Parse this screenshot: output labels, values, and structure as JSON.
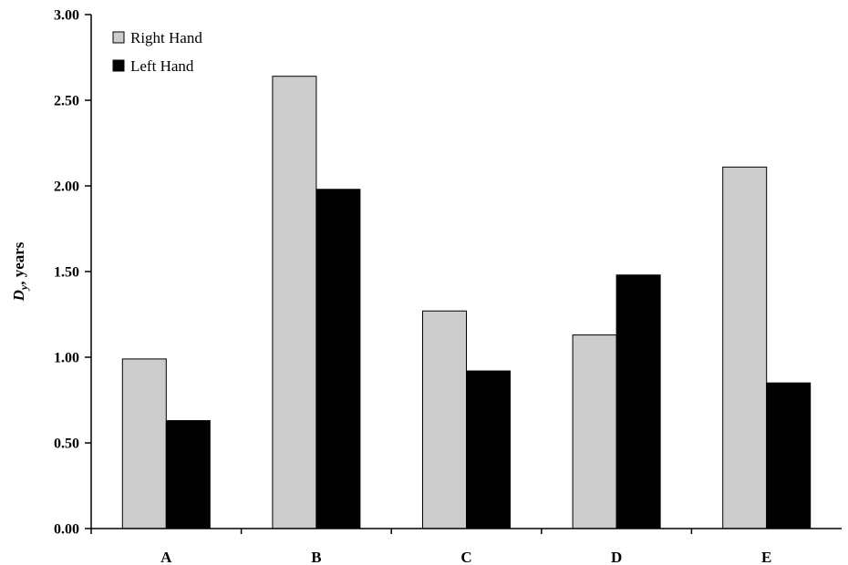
{
  "chart_data": {
    "type": "bar",
    "categories": [
      "A",
      "B",
      "C",
      "D",
      "E"
    ],
    "series": [
      {
        "name": "Right Hand",
        "color": "#cccccc",
        "values": [
          0.99,
          2.64,
          1.27,
          1.13,
          2.11
        ]
      },
      {
        "name": "Left Hand",
        "color": "#000000",
        "values": [
          0.63,
          1.98,
          0.92,
          1.48,
          0.85
        ]
      }
    ],
    "ylabel": {
      "italic": "D",
      "sub": "y",
      "rest": ", years"
    },
    "ylim": [
      0,
      3
    ],
    "yticks": [
      "0.00",
      "0.50",
      "1.00",
      "1.50",
      "2.00",
      "2.50",
      "3.00"
    ],
    "ytick_values": [
      0,
      0.5,
      1,
      1.5,
      2,
      2.5,
      3
    ],
    "grid": false,
    "legend_position": "top-left"
  }
}
